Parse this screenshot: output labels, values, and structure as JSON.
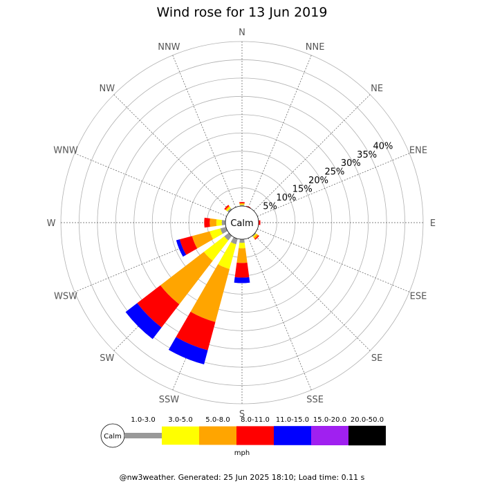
{
  "chart_data": {
    "type": "wind-rose",
    "title": "Wind rose for 13 Jun 2019",
    "directions": [
      "N",
      "NNE",
      "NE",
      "ENE",
      "E",
      "ESE",
      "SE",
      "SSE",
      "S",
      "SSW",
      "SW",
      "WSW",
      "W",
      "WNW",
      "NW",
      "NNW"
    ],
    "radial_ticks": [
      "5%",
      "10%",
      "15%",
      "20%",
      "25%",
      "30%",
      "35%",
      "40%"
    ],
    "radial_max_pct": 45,
    "calm_label": "Calm",
    "units": "mph",
    "speed_bins": [
      {
        "label": "1.0-3.0",
        "color": "#999999"
      },
      {
        "label": "3.0-5.0",
        "color": "#ffff00"
      },
      {
        "label": "5.0-8.0",
        "color": "#ffa500"
      },
      {
        "label": "8.0-11.0",
        "color": "#ff0000"
      },
      {
        "label": "11.0-15.0",
        "color": "#0000ff"
      },
      {
        "label": "15.0-20.0",
        "color": "#a020f0"
      },
      {
        "label": "20.0-50.0",
        "color": "#000000"
      }
    ],
    "frequencies_pct": {
      "N": [
        0.3,
        0.2,
        0.3,
        0.3,
        0,
        0,
        0
      ],
      "NNE": [
        0,
        0,
        0,
        0.2,
        0,
        0,
        0
      ],
      "NE": [
        0,
        0,
        0,
        0,
        0,
        0,
        0
      ],
      "ENE": [
        0,
        0,
        0,
        0,
        0,
        0,
        0
      ],
      "E": [
        0,
        0,
        0,
        0.5,
        0,
        0,
        0
      ],
      "ESE": [
        0,
        0,
        0,
        0,
        0,
        0,
        0
      ],
      "SE": [
        0.3,
        0.3,
        0.5,
        0.3,
        0,
        0,
        0
      ],
      "SSE": [
        0,
        0,
        0,
        0,
        0,
        0,
        0
      ],
      "S": [
        1.0,
        1.5,
        4.0,
        4.0,
        1.5,
        0,
        0
      ],
      "SSW": [
        1.6,
        7.0,
        15.0,
        8.0,
        4.0,
        0,
        0
      ],
      "SW": [
        1.6,
        7.0,
        15.0,
        8.0,
        4.0,
        0,
        0
      ],
      "WSW": [
        1.6,
        3.0,
        5.0,
        3.5,
        1.0,
        0,
        0
      ],
      "W": [
        1.0,
        1.5,
        1.8,
        1.5,
        0,
        0,
        0
      ],
      "WNW": [
        0,
        0,
        0,
        0,
        0,
        0,
        0
      ],
      "NW": [
        0.5,
        0.4,
        0.3,
        0.4,
        0,
        0,
        0
      ],
      "NNW": [
        0,
        0,
        0,
        0,
        0,
        0,
        0
      ]
    }
  },
  "footer": "@nw3weather. Generated: 25 Jun 2025 18:10; Load time: 0.11 s"
}
